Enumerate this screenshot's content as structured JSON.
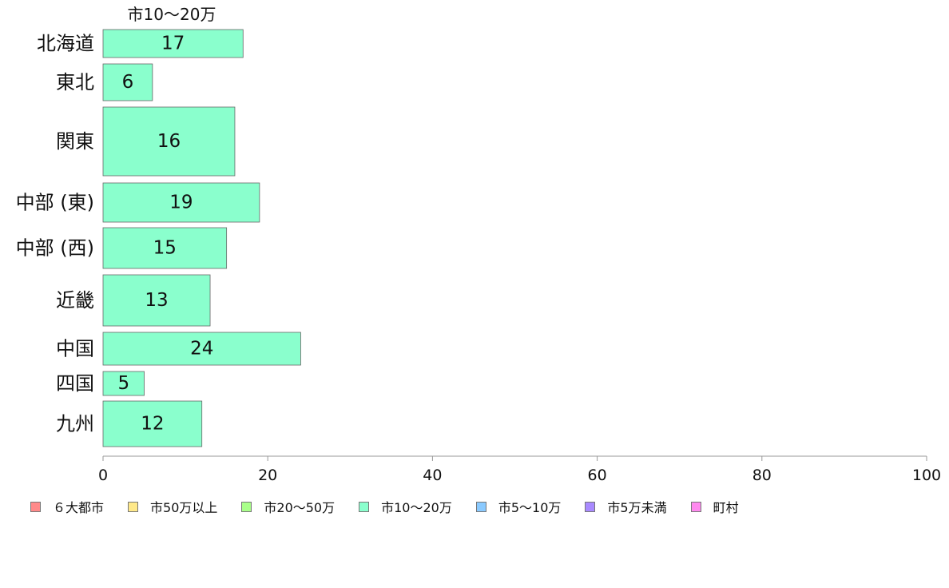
{
  "chart_data": {
    "type": "bar",
    "orientation": "horizontal",
    "series_title": "市10〜20万",
    "categories": [
      "北海道",
      "東北",
      "関東",
      "中部 (東)",
      "中部 (西)",
      "近畿",
      "中国",
      "四国",
      "九州"
    ],
    "values": [
      17,
      6,
      16,
      19,
      15,
      13,
      24,
      5,
      12
    ],
    "xlim": [
      0,
      100
    ],
    "xticks": [
      0,
      20,
      40,
      60,
      80,
      100
    ],
    "grid": false,
    "bar_color": "#8affcd",
    "legend_position": "bottom-left",
    "legend": [
      {
        "label": "６大都市",
        "color": "#ff8a8a"
      },
      {
        "label": "市50万以上",
        "color": "#ffe98a"
      },
      {
        "label": "市20〜50万",
        "color": "#a9ff8a"
      },
      {
        "label": "市10〜20万",
        "color": "#8affcd"
      },
      {
        "label": "市5〜10万",
        "color": "#8acaff"
      },
      {
        "label": "市5万未満",
        "color": "#a98aff"
      },
      {
        "label": "町村",
        "color": "#ff8aef"
      }
    ]
  }
}
